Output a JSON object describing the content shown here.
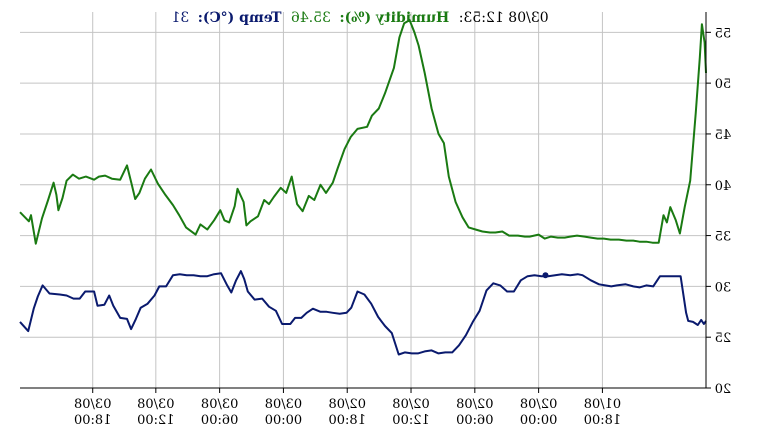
{
  "header": {
    "timestamp": "03/08 12:53:",
    "humidity_label": "Humidity (%):",
    "humidity_value": "35.46",
    "temp_label": "Temp (°C):",
    "temp_value": "31"
  },
  "chart_data": {
    "type": "line",
    "title": "",
    "xlabel": "",
    "ylabel": "",
    "orientation": "mirrored",
    "ylim": [
      20,
      57
    ],
    "yticks": [
      20,
      25,
      30,
      35,
      40,
      45,
      50,
      55
    ],
    "grid": true,
    "x_domain": [
      0,
      100
    ],
    "x_ticks": [
      {
        "pos": 10.6,
        "date": "03/08",
        "time": "18:00"
      },
      {
        "pos": 19.8,
        "date": "03/08",
        "time": "12:00"
      },
      {
        "pos": 29.1,
        "date": "03/08",
        "time": "06:00"
      },
      {
        "pos": 38.4,
        "date": "03/08",
        "time": "00:00"
      },
      {
        "pos": 47.7,
        "date": "02/08",
        "time": "18:00"
      },
      {
        "pos": 57.0,
        "date": "02/08",
        "time": "12:00"
      },
      {
        "pos": 66.3,
        "date": "02/08",
        "time": "06:00"
      },
      {
        "pos": 75.6,
        "date": "02/08",
        "time": "00:00"
      },
      {
        "pos": 84.9,
        "date": "01/08",
        "time": "18:00"
      }
    ],
    "series": [
      {
        "name": "Humidity (%)",
        "color": "#1a7a12",
        "points": [
          [
            0.0,
            37.3
          ],
          [
            1.3,
            36.4
          ],
          [
            1.6,
            37.0
          ],
          [
            2.3,
            34.2
          ],
          [
            3.2,
            36.7
          ],
          [
            4.1,
            38.5
          ],
          [
            4.9,
            40.2
          ],
          [
            5.3,
            39.0
          ],
          [
            5.6,
            37.5
          ],
          [
            6.2,
            38.7
          ],
          [
            6.8,
            40.4
          ],
          [
            7.7,
            41.0
          ],
          [
            8.6,
            40.6
          ],
          [
            9.6,
            40.8
          ],
          [
            10.8,
            40.5
          ],
          [
            11.5,
            40.8
          ],
          [
            12.4,
            40.9
          ],
          [
            13.4,
            40.6
          ],
          [
            14.6,
            40.5
          ],
          [
            15.6,
            41.9
          ],
          [
            16.3,
            40.0
          ],
          [
            16.8,
            38.6
          ],
          [
            17.4,
            39.2
          ],
          [
            18.2,
            40.6
          ],
          [
            19.1,
            41.5
          ],
          [
            20.1,
            40.1
          ],
          [
            21.2,
            39.0
          ],
          [
            22.3,
            38.0
          ],
          [
            23.2,
            37.0
          ],
          [
            24.2,
            35.8
          ],
          [
            25.6,
            35.1
          ],
          [
            26.3,
            36.1
          ],
          [
            27.3,
            35.6
          ],
          [
            28.3,
            36.5
          ],
          [
            29.2,
            37.5
          ],
          [
            29.8,
            36.5
          ],
          [
            30.5,
            36.3
          ],
          [
            31.3,
            37.9
          ],
          [
            31.7,
            39.6
          ],
          [
            32.6,
            38.3
          ],
          [
            33.0,
            36.0
          ],
          [
            33.6,
            36.4
          ],
          [
            34.7,
            36.9
          ],
          [
            35.6,
            38.5
          ],
          [
            36.3,
            38.1
          ],
          [
            37.0,
            38.8
          ],
          [
            38.0,
            39.7
          ],
          [
            38.8,
            39.2
          ],
          [
            39.6,
            40.8
          ],
          [
            40.4,
            38.1
          ],
          [
            41.2,
            37.4
          ],
          [
            42.1,
            38.9
          ],
          [
            42.9,
            38.5
          ],
          [
            43.8,
            40.0
          ],
          [
            44.6,
            39.2
          ],
          [
            45.6,
            40.2
          ],
          [
            46.3,
            41.6
          ],
          [
            47.3,
            43.5
          ],
          [
            48.2,
            44.7
          ],
          [
            49.2,
            45.5
          ],
          [
            50.6,
            45.7
          ],
          [
            51.3,
            46.8
          ],
          [
            52.3,
            47.5
          ],
          [
            53.2,
            49.0
          ],
          [
            54.5,
            51.5
          ],
          [
            55.3,
            54.5
          ],
          [
            56.0,
            55.9
          ],
          [
            56.8,
            56.2
          ],
          [
            57.5,
            55.0
          ],
          [
            58.1,
            53.7
          ],
          [
            59.0,
            51.0
          ],
          [
            60.0,
            47.5
          ],
          [
            61.0,
            45.0
          ],
          [
            61.8,
            44.1
          ],
          [
            62.5,
            40.8
          ],
          [
            63.5,
            38.3
          ],
          [
            64.5,
            36.8
          ],
          [
            65.4,
            35.8
          ],
          [
            66.4,
            35.6
          ],
          [
            67.4,
            35.4
          ],
          [
            68.5,
            35.3
          ],
          [
            69.3,
            35.3
          ],
          [
            70.3,
            35.4
          ],
          [
            71.3,
            35.0
          ],
          [
            72.6,
            35.0
          ],
          [
            73.6,
            34.9
          ],
          [
            74.3,
            34.9
          ],
          [
            75.6,
            35.1
          ],
          [
            76.5,
            34.7
          ],
          [
            77.4,
            34.9
          ],
          [
            78.4,
            34.8
          ],
          [
            79.4,
            34.8
          ],
          [
            80.2,
            34.9
          ],
          [
            81.2,
            35.0
          ],
          [
            82.3,
            34.9
          ],
          [
            83.2,
            34.8
          ],
          [
            84.2,
            34.7
          ],
          [
            85.1,
            34.7
          ],
          [
            86.1,
            34.6
          ],
          [
            87.3,
            34.6
          ],
          [
            88.4,
            34.5
          ],
          [
            89.4,
            34.5
          ],
          [
            90.3,
            34.4
          ],
          [
            91.3,
            34.4
          ],
          [
            92.2,
            34.3
          ],
          [
            93.1,
            34.3
          ],
          [
            93.8,
            37.0
          ],
          [
            94.3,
            36.3
          ],
          [
            94.8,
            37.8
          ],
          [
            95.6,
            36.5
          ],
          [
            96.2,
            35.2
          ],
          [
            96.9,
            37.8
          ],
          [
            97.7,
            40.4
          ],
          [
            98.5,
            47.0
          ],
          [
            99.1,
            52.5
          ],
          [
            99.4,
            55.8
          ],
          [
            99.8,
            54.0
          ],
          [
            100.0,
            51.0
          ]
        ]
      },
      {
        "name": "Temp (°C)",
        "color": "#0a1a6e",
        "points": [
          [
            0.0,
            26.5
          ],
          [
            1.2,
            25.6
          ],
          [
            2.0,
            27.8
          ],
          [
            2.6,
            29.0
          ],
          [
            3.3,
            30.1
          ],
          [
            4.3,
            29.3
          ],
          [
            5.8,
            29.2
          ],
          [
            6.8,
            29.1
          ],
          [
            7.8,
            28.8
          ],
          [
            8.7,
            28.8
          ],
          [
            9.5,
            29.5
          ],
          [
            10.8,
            29.5
          ],
          [
            11.3,
            28.1
          ],
          [
            12.3,
            28.2
          ],
          [
            13.0,
            29.1
          ],
          [
            13.6,
            28.1
          ],
          [
            14.6,
            26.9
          ],
          [
            15.6,
            26.8
          ],
          [
            16.2,
            25.8
          ],
          [
            16.9,
            26.8
          ],
          [
            17.6,
            27.9
          ],
          [
            18.6,
            28.3
          ],
          [
            19.6,
            29.1
          ],
          [
            20.3,
            30.0
          ],
          [
            21.3,
            30.0
          ],
          [
            22.3,
            31.1
          ],
          [
            23.3,
            31.2
          ],
          [
            24.3,
            31.1
          ],
          [
            25.3,
            31.1
          ],
          [
            26.3,
            31.0
          ],
          [
            27.3,
            31.0
          ],
          [
            28.3,
            31.2
          ],
          [
            29.3,
            31.3
          ],
          [
            30.2,
            30.1
          ],
          [
            30.8,
            29.4
          ],
          [
            31.5,
            30.6
          ],
          [
            32.2,
            31.5
          ],
          [
            32.7,
            30.7
          ],
          [
            33.2,
            29.5
          ],
          [
            34.2,
            28.7
          ],
          [
            35.3,
            28.8
          ],
          [
            36.3,
            28.0
          ],
          [
            37.3,
            27.6
          ],
          [
            38.2,
            26.3
          ],
          [
            39.4,
            26.3
          ],
          [
            40.1,
            26.9
          ],
          [
            41.0,
            26.9
          ],
          [
            41.8,
            27.4
          ],
          [
            42.7,
            27.8
          ],
          [
            43.8,
            27.5
          ],
          [
            44.7,
            27.5
          ],
          [
            45.6,
            27.4
          ],
          [
            46.6,
            27.3
          ],
          [
            47.6,
            27.4
          ],
          [
            48.3,
            27.9
          ],
          [
            49.2,
            29.5
          ],
          [
            50.2,
            29.2
          ],
          [
            51.2,
            28.3
          ],
          [
            52.2,
            27.0
          ],
          [
            53.2,
            26.1
          ],
          [
            54.2,
            25.4
          ],
          [
            55.2,
            23.3
          ],
          [
            56.1,
            23.5
          ],
          [
            57.1,
            23.4
          ],
          [
            58.0,
            23.4
          ],
          [
            59.0,
            23.6
          ],
          [
            60.0,
            23.7
          ],
          [
            61.0,
            23.4
          ],
          [
            62.0,
            23.5
          ],
          [
            63.0,
            23.5
          ],
          [
            64.0,
            24.2
          ],
          [
            65.0,
            25.2
          ],
          [
            66.0,
            26.5
          ],
          [
            67.0,
            27.6
          ],
          [
            68.0,
            29.6
          ],
          [
            69.0,
            30.3
          ],
          [
            70.0,
            30.1
          ],
          [
            71.0,
            29.5
          ],
          [
            72.0,
            29.5
          ],
          [
            73.0,
            30.6
          ],
          [
            74.0,
            31.0
          ],
          [
            75.0,
            31.1
          ],
          [
            76.0,
            31.0
          ],
          [
            77.0,
            31.0
          ],
          [
            78.0,
            31.1
          ],
          [
            79.0,
            31.2
          ],
          [
            80.2,
            31.1
          ],
          [
            81.3,
            31.2
          ],
          [
            82.0,
            31.1
          ],
          [
            83.2,
            30.6
          ],
          [
            84.4,
            30.2
          ],
          [
            85.3,
            30.1
          ],
          [
            86.2,
            30.0
          ],
          [
            87.0,
            30.1
          ],
          [
            88.3,
            30.2
          ],
          [
            89.4,
            30.0
          ],
          [
            90.3,
            29.9
          ],
          [
            91.3,
            30.1
          ],
          [
            92.3,
            30.0
          ],
          [
            93.3,
            31.0
          ],
          [
            94.2,
            31.0
          ],
          [
            95.4,
            31.0
          ],
          [
            96.3,
            31.0
          ],
          [
            97.1,
            27.4
          ],
          [
            97.4,
            26.6
          ],
          [
            98.1,
            26.5
          ],
          [
            98.8,
            26.2
          ],
          [
            99.3,
            26.7
          ],
          [
            99.7,
            26.3
          ],
          [
            100.0,
            26.6
          ]
        ]
      }
    ],
    "markers": [
      {
        "series": "Temp (°C)",
        "x": 76.6,
        "y": 31.1
      }
    ]
  }
}
